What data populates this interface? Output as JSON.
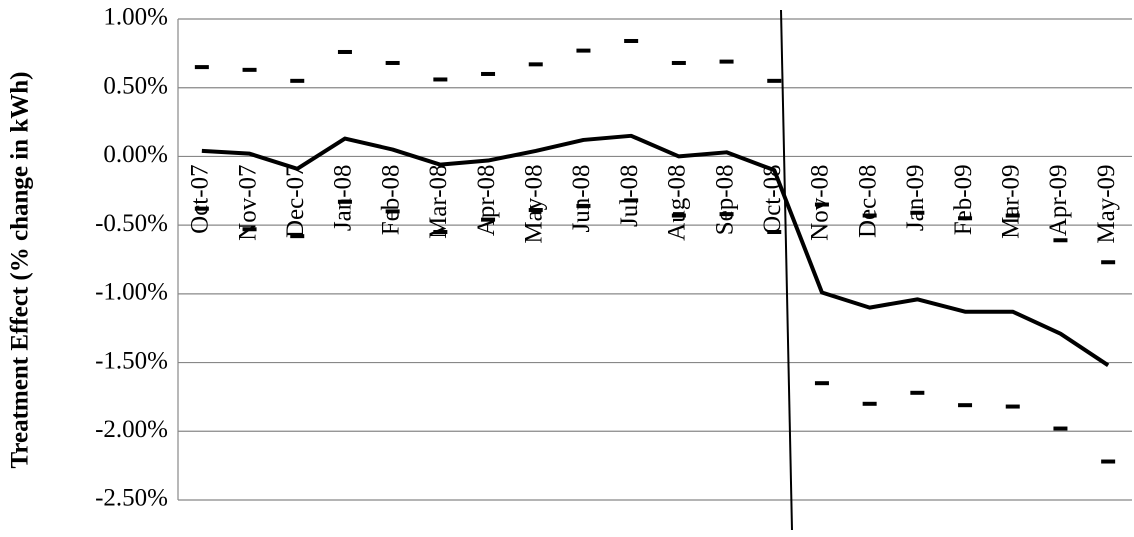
{
  "chart_data": {
    "type": "line",
    "y_label": "Treatment Effect (% change in kWh)",
    "categories": [
      "Oct-07",
      "Nov-07",
      "Dec-07",
      "Jan-08",
      "Feb-08",
      "Mar-08",
      "Apr-08",
      "May-08",
      "Jun-08",
      "Jul-08",
      "Aug-08",
      "Sep-08",
      "Oct-08",
      "Nov-08",
      "Dec-08",
      "Jan-09",
      "Feb-09",
      "Mar-09",
      "Apr-09",
      "May-09"
    ],
    "series": [
      {
        "color": "#000000",
        "style": "line",
        "values": [
          0.04,
          0.02,
          -0.09,
          0.13,
          0.05,
          -0.06,
          -0.03,
          0.04,
          0.12,
          0.15,
          0.0,
          0.03,
          -0.1,
          -0.99,
          -1.1,
          -1.04,
          -1.13,
          -1.13,
          -1.29,
          -1.52
        ]
      },
      {
        "color": "#000000",
        "style": "dash",
        "values": [
          0.65,
          0.63,
          0.55,
          0.76,
          0.68,
          0.56,
          0.6,
          0.67,
          0.77,
          0.84,
          0.68,
          0.69,
          0.55,
          -0.35,
          -0.43,
          -0.41,
          -0.45,
          -0.43,
          -0.61,
          -0.77
        ]
      },
      {
        "color": "#000000",
        "style": "dash",
        "values": [
          -0.38,
          -0.53,
          -0.58,
          -0.33,
          -0.4,
          -0.55,
          -0.46,
          -0.39,
          -0.36,
          -0.32,
          -0.43,
          -0.42,
          -0.55,
          -1.65,
          -1.8,
          -1.72,
          -1.81,
          -1.82,
          -1.98,
          -2.22
        ]
      }
    ],
    "ylim": [
      -2.5,
      1
    ],
    "yticks": [
      {
        "value": -2.5,
        "label": "-2.50%"
      },
      {
        "value": -2,
        "label": "-2.00%"
      },
      {
        "value": -1.5,
        "label": "-1.50%"
      },
      {
        "value": -1,
        "label": "-1.00%"
      },
      {
        "value": -0.5,
        "label": "-0.50%"
      },
      {
        "value": 0,
        "label": "0.00%"
      },
      {
        "value": 0.5,
        "label": "0.50%"
      },
      {
        "value": 1,
        "label": "1.00%"
      }
    ],
    "grid": true
  }
}
